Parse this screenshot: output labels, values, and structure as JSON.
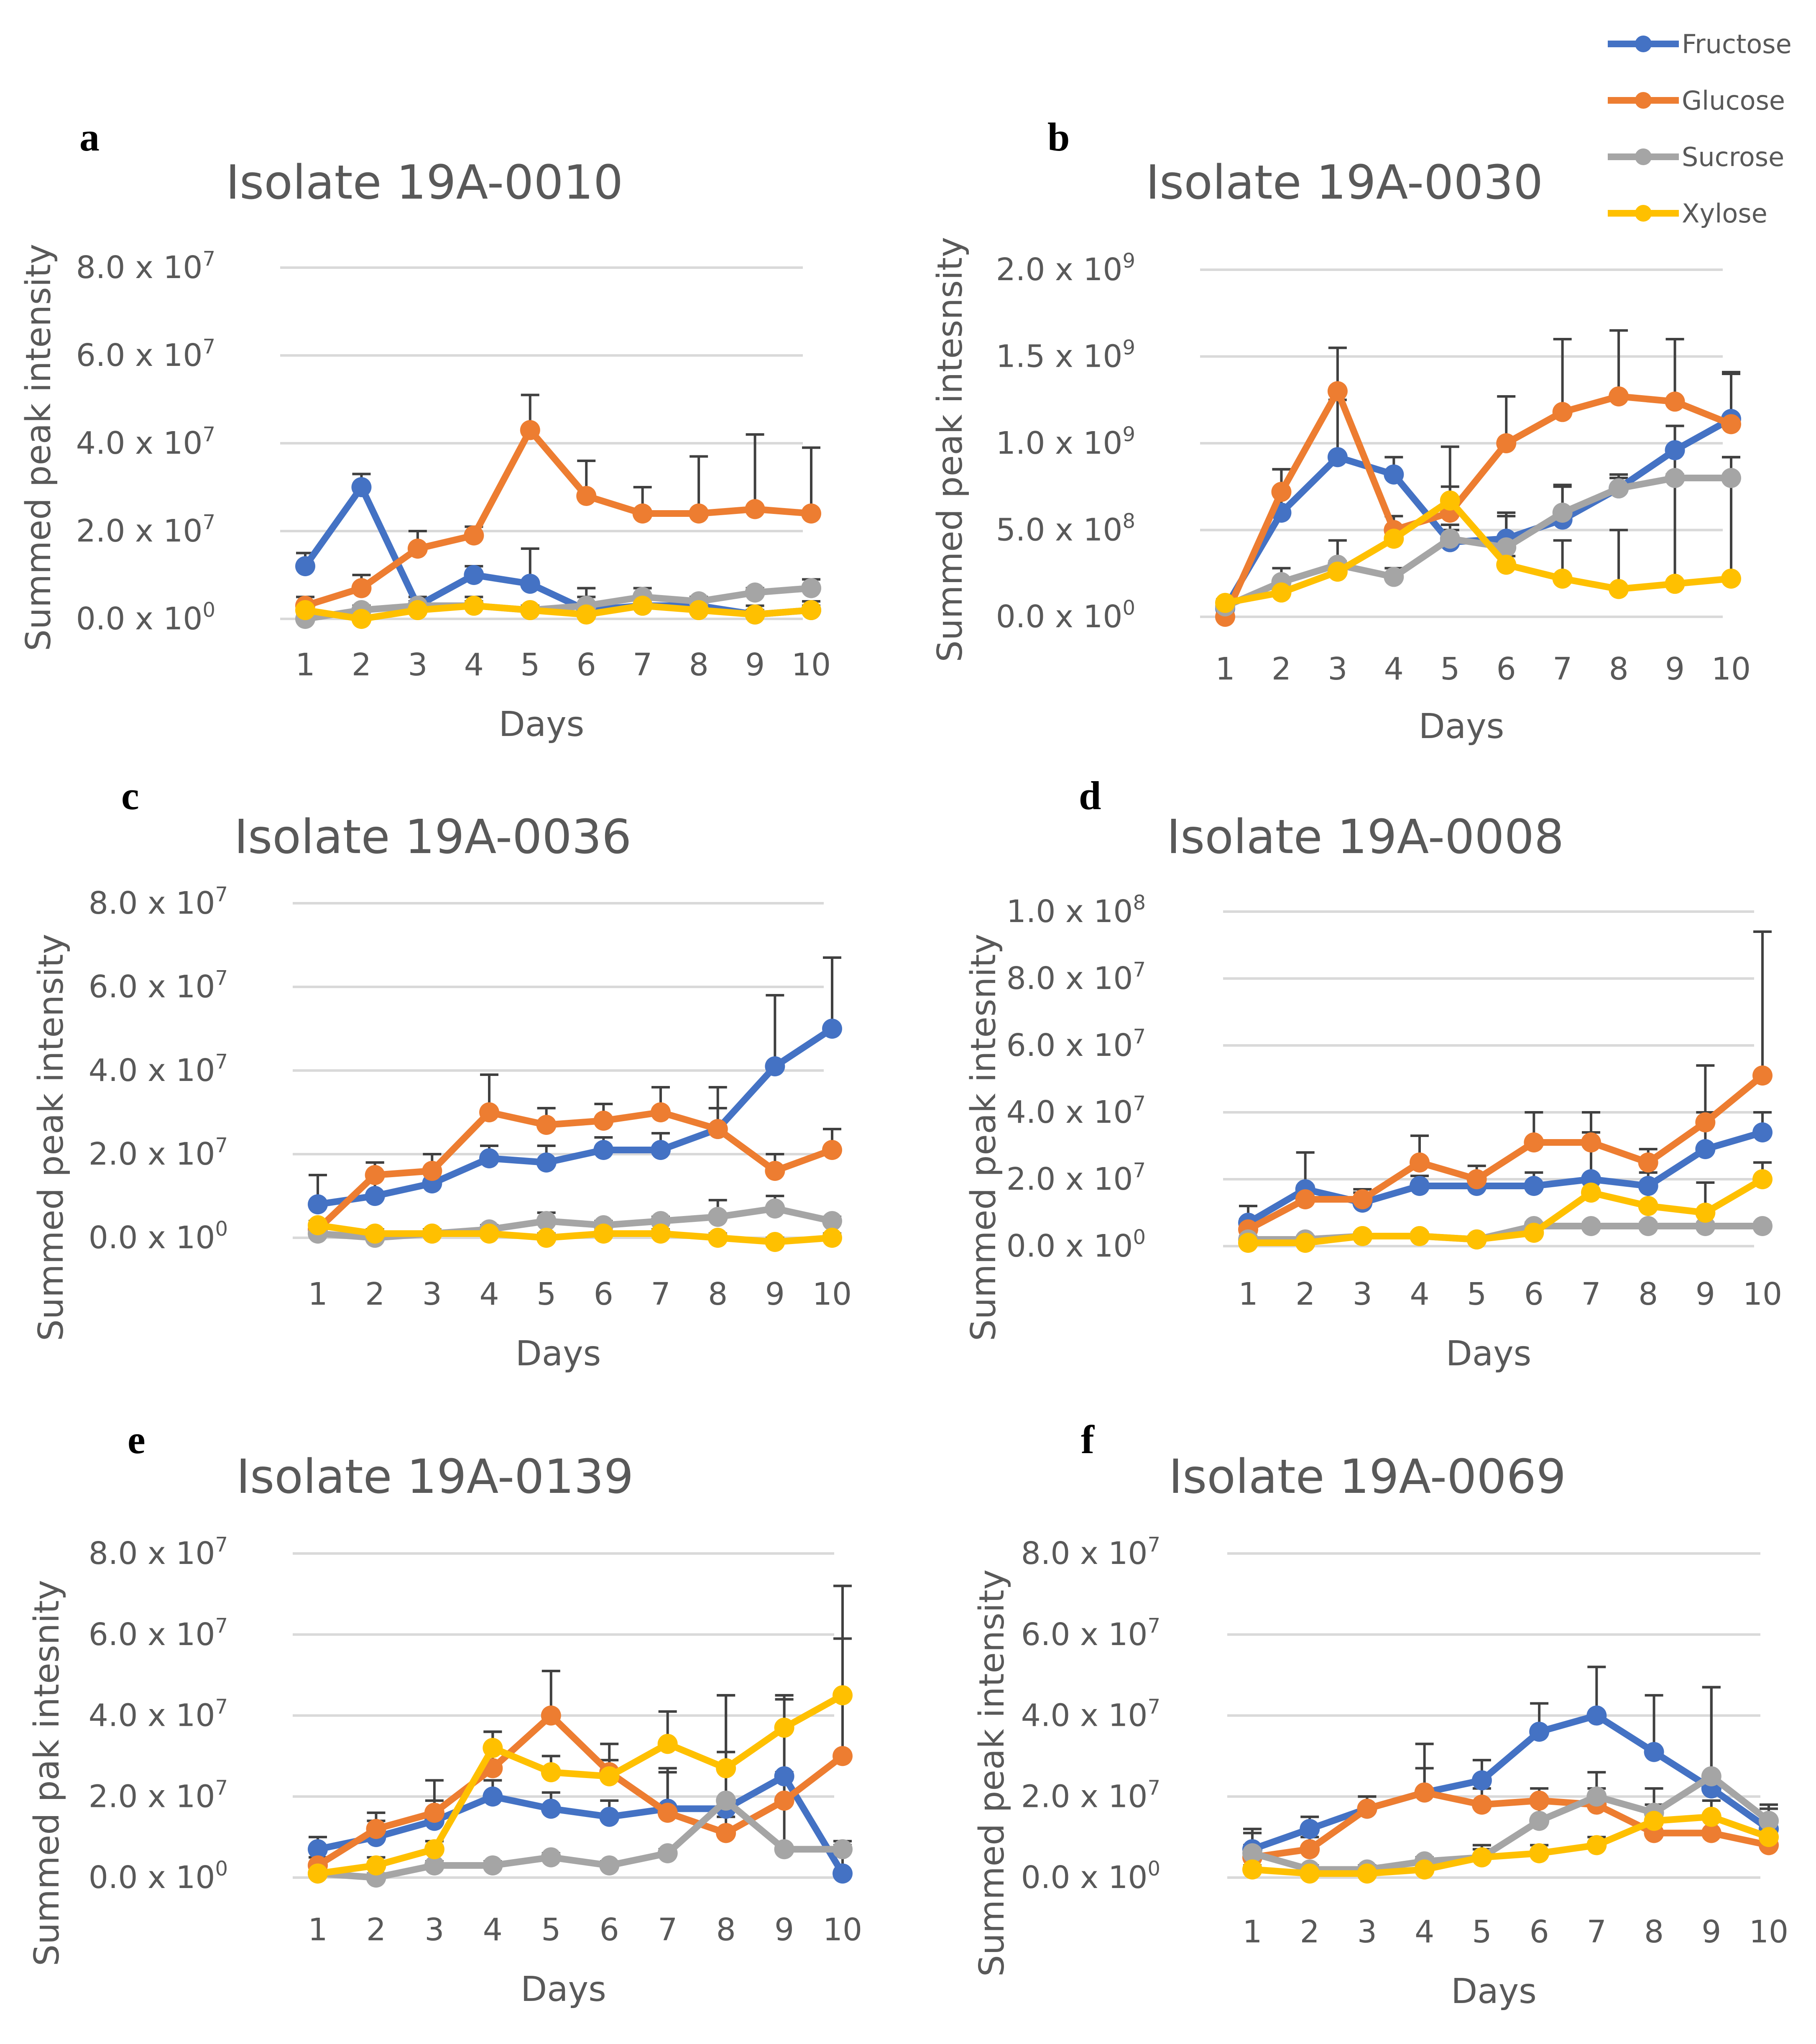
{
  "colors": {
    "Fructose": "#4472c4",
    "Glucose": "#ed7d31",
    "Sucrose": "#a5a5a5",
    "Xylose": "#ffc000"
  },
  "legend": {
    "entries": [
      "Fructose",
      "Glucose",
      "Sucrose",
      "Xylose"
    ]
  },
  "chart_data": [
    {
      "type": "line",
      "panel": "a",
      "title": "Isolate 19A-0010",
      "xlabel": "Days",
      "ylabel": "Summed peak intensity",
      "categories": [
        "1",
        "2",
        "3",
        "4",
        "5",
        "6",
        "7",
        "8",
        "9",
        "10"
      ],
      "ylim": [
        0,
        80000000.0
      ],
      "yticks": [
        {
          "value": 0,
          "mant": "0.0",
          "exp": "0"
        },
        {
          "value": 20000000.0,
          "mant": "2.0",
          "exp": "7"
        },
        {
          "value": 40000000.0,
          "mant": "4.0",
          "exp": "7"
        },
        {
          "value": 60000000.0,
          "mant": "6.0",
          "exp": "7"
        },
        {
          "value": 80000000.0,
          "mant": "8.0",
          "exp": "7"
        }
      ],
      "series": [
        {
          "name": "Fructose",
          "values": [
            12000000.0,
            30000000.0,
            3000000.0,
            10000000.0,
            8000000.0,
            2000000.0,
            3000000.0,
            3000000.0,
            1000000.0,
            2000000.0
          ],
          "errors": [
            3000000.0,
            3000000.0,
            2000000.0,
            2000000.0,
            8000000.0,
            3000000.0,
            2000000.0,
            2000000.0,
            2000000.0,
            2000000.0
          ]
        },
        {
          "name": "Glucose",
          "values": [
            3000000.0,
            7000000.0,
            16000000.0,
            19000000.0,
            43000000.0,
            28000000.0,
            24000000.0,
            24000000.0,
            25000000.0,
            24000000.0
          ],
          "errors": [
            2000000.0,
            3000000.0,
            4000000.0,
            2000000.0,
            8000000.0,
            8000000.0,
            6000000.0,
            13000000.0,
            17000000.0,
            15000000.0
          ]
        },
        {
          "name": "Sucrose",
          "values": [
            0.0,
            2000000.0,
            3000000.0,
            3000000.0,
            2000000.0,
            3000000.0,
            5000000.0,
            4000000.0,
            6000000.0,
            7000000.0
          ],
          "errors": [
            1000000.0,
            1000000.0,
            1000000.0,
            1000000.0,
            1000000.0,
            4000000.0,
            2000000.0,
            1000000.0,
            1000000.0,
            2000000.0
          ]
        },
        {
          "name": "Xylose",
          "values": [
            2000000.0,
            0.0,
            2000000.0,
            3000000.0,
            2000000.0,
            1000000.0,
            3000000.0,
            2000000.0,
            1000000.0,
            2000000.0
          ],
          "errors": [
            1000000.0,
            1000000.0,
            1000000.0,
            2000000.0,
            1000000.0,
            1000000.0,
            1000000.0,
            1000000.0,
            1000000.0,
            1000000.0
          ]
        }
      ]
    },
    {
      "type": "line",
      "panel": "b",
      "title": "Isolate 19A-0030",
      "xlabel": "Days",
      "ylabel": "Summed peak intesnsity",
      "categories": [
        "1",
        "2",
        "3",
        "4",
        "5",
        "6",
        "7",
        "8",
        "9",
        "10"
      ],
      "ylim": [
        0,
        2000000000.0
      ],
      "yticks": [
        {
          "value": 0,
          "mant": "0.0",
          "exp": "0"
        },
        {
          "value": 500000000.0,
          "mant": "5.0",
          "exp": "8"
        },
        {
          "value": 1000000000.0,
          "mant": "1.0",
          "exp": "9"
        },
        {
          "value": 1500000000.0,
          "mant": "1.5",
          "exp": "9"
        },
        {
          "value": 2000000000.0,
          "mant": "2.0",
          "exp": "9"
        }
      ],
      "series": [
        {
          "name": "Fructose",
          "values": [
            50000000.0,
            600000000.0,
            920000000.0,
            820000000.0,
            430000000.0,
            450000000.0,
            560000000.0,
            740000000.0,
            960000000.0,
            1140000000.0
          ],
          "errors": [
            20000000.0,
            250000000.0,
            330000000.0,
            100000000.0,
            100000000.0,
            130000000.0,
            200000000.0,
            80000000.0,
            140000000.0,
            260000000.0
          ]
        },
        {
          "name": "Glucose",
          "values": [
            0.0,
            720000000.0,
            1300000000.0,
            500000000.0,
            600000000.0,
            1000000000.0,
            1180000000.0,
            1270000000.0,
            1240000000.0,
            1110000000.0
          ],
          "errors": [
            20000000.0,
            130000000.0,
            250000000.0,
            80000000.0,
            380000000.0,
            270000000.0,
            420000000.0,
            380000000.0,
            360000000.0,
            300000000.0
          ]
        },
        {
          "name": "Sucrose",
          "values": [
            60000000.0,
            200000000.0,
            300000000.0,
            230000000.0,
            450000000.0,
            400000000.0,
            600000000.0,
            740000000.0,
            800000000.0,
            800000000.0
          ],
          "errors": [
            20000000.0,
            80000000.0,
            140000000.0,
            50000000.0,
            50000000.0,
            200000000.0,
            150000000.0,
            60000000.0,
            300000000.0,
            120000000.0
          ]
        },
        {
          "name": "Xylose",
          "values": [
            80000000.0,
            140000000.0,
            260000000.0,
            450000000.0,
            670000000.0,
            300000000.0,
            220000000.0,
            160000000.0,
            190000000.0,
            220000000.0
          ],
          "errors": [
            20000000.0,
            50000000.0,
            60000000.0,
            60000000.0,
            80000000.0,
            50000000.0,
            220000000.0,
            340000000.0,
            630000000.0,
            700000000.0
          ]
        }
      ]
    },
    {
      "type": "line",
      "panel": "c",
      "title": "Isolate 19A-0036",
      "xlabel": "Days",
      "ylabel": "Summed peak intensity",
      "categories": [
        "1",
        "2",
        "3",
        "4",
        "5",
        "6",
        "7",
        "8",
        "9",
        "10"
      ],
      "ylim": [
        0,
        80000000.0
      ],
      "yticks": [
        {
          "value": 0,
          "mant": "0.0",
          "exp": "0"
        },
        {
          "value": 20000000.0,
          "mant": "2.0",
          "exp": "7"
        },
        {
          "value": 40000000.0,
          "mant": "4.0",
          "exp": "7"
        },
        {
          "value": 60000000.0,
          "mant": "6.0",
          "exp": "7"
        },
        {
          "value": 80000000.0,
          "mant": "8.0",
          "exp": "7"
        }
      ],
      "series": [
        {
          "name": "Fructose",
          "values": [
            8000000.0,
            10000000.0,
            13000000.0,
            19000000.0,
            18000000.0,
            21000000.0,
            21000000.0,
            26000000.0,
            41000000.0,
            50000000.0
          ],
          "errors": [
            7000000.0,
            8000000.0,
            3000000.0,
            3000000.0,
            4000000.0,
            3000000.0,
            4000000.0,
            5000000.0,
            17000000.0,
            17000000.0
          ]
        },
        {
          "name": "Glucose",
          "values": [
            2000000.0,
            15000000.0,
            16000000.0,
            30000000.0,
            27000000.0,
            28000000.0,
            30000000.0,
            26000000.0,
            16000000.0,
            21000000.0
          ],
          "errors": [
            2000000.0,
            3000000.0,
            4000000.0,
            9000000.0,
            4000000.0,
            4000000.0,
            6000000.0,
            10000000.0,
            4000000.0,
            5000000.0
          ]
        },
        {
          "name": "Sucrose",
          "values": [
            1000000.0,
            0.0,
            1000000.0,
            2000000.0,
            4000000.0,
            3000000.0,
            4000000.0,
            5000000.0,
            7000000.0,
            4000000.0
          ],
          "errors": [
            1000000.0,
            1000000.0,
            1000000.0,
            1000000.0,
            2000000.0,
            1000000.0,
            1000000.0,
            4000000.0,
            3000000.0,
            1000000.0
          ]
        },
        {
          "name": "Xylose",
          "values": [
            3000000.0,
            1000000.0,
            1000000.0,
            1000000.0,
            0.0,
            1000000.0,
            1000000.0,
            0.0,
            -1000000.0,
            0.0
          ],
          "errors": [
            1000000.0,
            1000000.0,
            1000000.0,
            1000000.0,
            1000000.0,
            1000000.0,
            1000000.0,
            1000000.0,
            1000000.0,
            1000000.0
          ]
        }
      ]
    },
    {
      "type": "line",
      "panel": "d",
      "title": "Isolate 19A-0008",
      "xlabel": "Days",
      "ylabel": "Summed peak intesnity",
      "categories": [
        "1",
        "2",
        "3",
        "4",
        "5",
        "6",
        "7",
        "8",
        "9",
        "10"
      ],
      "ylim": [
        0,
        100000000.0
      ],
      "yticks": [
        {
          "value": 0,
          "mant": "0.0",
          "exp": "0"
        },
        {
          "value": 20000000.0,
          "mant": "2.0",
          "exp": "7"
        },
        {
          "value": 40000000.0,
          "mant": "4.0",
          "exp": "7"
        },
        {
          "value": 60000000.0,
          "mant": "6.0",
          "exp": "7"
        },
        {
          "value": 80000000.0,
          "mant": "8.0",
          "exp": "7"
        },
        {
          "value": 100000000.0,
          "mant": "1.0",
          "exp": "8"
        }
      ],
      "series": [
        {
          "name": "Fructose",
          "values": [
            7000000.0,
            17000000.0,
            13000000.0,
            18000000.0,
            18000000.0,
            18000000.0,
            20000000.0,
            18000000.0,
            29000000.0,
            34000000.0
          ],
          "errors": [
            5000000.0,
            11000000.0,
            3000000.0,
            3000000.0,
            3000000.0,
            4000000.0,
            20000000.0,
            4000000.0,
            11000000.0,
            6000000.0
          ]
        },
        {
          "name": "Glucose",
          "values": [
            5000000.0,
            14000000.0,
            14000000.0,
            25000000.0,
            20000000.0,
            31000000.0,
            31000000.0,
            25000000.0,
            37000000.0,
            51000000.0
          ],
          "errors": [
            3000000.0,
            4000000.0,
            3000000.0,
            8000000.0,
            4000000.0,
            9000000.0,
            9000000.0,
            4000000.0,
            17000000.0,
            43000000.0
          ]
        },
        {
          "name": "Sucrose",
          "values": [
            2000000.0,
            2000000.0,
            3000000.0,
            3000000.0,
            2000000.0,
            6000000.0,
            6000000.0,
            6000000.0,
            6000000.0,
            6000000.0
          ],
          "errors": [
            1000000.0,
            1000000.0,
            1000000.0,
            1000000.0,
            1000000.0,
            1000000.0,
            1000000.0,
            1000000.0,
            1000000.0,
            1000000.0
          ]
        },
        {
          "name": "Xylose",
          "values": [
            1000000.0,
            1000000.0,
            3000000.0,
            3000000.0,
            2000000.0,
            4000000.0,
            16000000.0,
            12000000.0,
            10000000.0,
            20000000.0
          ],
          "errors": [
            1000000.0,
            1000000.0,
            1000000.0,
            1000000.0,
            1000000.0,
            2000000.0,
            18000000.0,
            6000000.0,
            9000000.0,
            5000000.0
          ]
        }
      ]
    },
    {
      "type": "line",
      "panel": "e",
      "title": "Isolate 19A-0139",
      "xlabel": "Days",
      "ylabel": "Summed pak intesnity",
      "categories": [
        "1",
        "2",
        "3",
        "4",
        "5",
        "6",
        "7",
        "8",
        "9",
        "10"
      ],
      "ylim": [
        0,
        80000000.0
      ],
      "yticks": [
        {
          "value": 0,
          "mant": "0.0",
          "exp": "0"
        },
        {
          "value": 20000000.0,
          "mant": "2.0",
          "exp": "7"
        },
        {
          "value": 40000000.0,
          "mant": "4.0",
          "exp": "7"
        },
        {
          "value": 60000000.0,
          "mant": "6.0",
          "exp": "7"
        },
        {
          "value": 80000000.0,
          "mant": "8.0",
          "exp": "7"
        }
      ],
      "series": [
        {
          "name": "Fructose",
          "values": [
            7000000.0,
            10000000.0,
            14000000.0,
            20000000.0,
            17000000.0,
            15000000.0,
            17000000.0,
            17000000.0,
            25000000.0,
            1000000.0
          ],
          "errors": [
            3000000.0,
            4000000.0,
            5000000.0,
            4000000.0,
            4000000.0,
            4000000.0,
            9000000.0,
            14000000.0,
            19000000.0,
            8000000.0
          ]
        },
        {
          "name": "Glucose",
          "values": [
            3000000.0,
            12000000.0,
            16000000.0,
            27000000.0,
            40000000.0,
            26000000.0,
            16000000.0,
            11000000.0,
            19000000.0,
            30000000.0
          ],
          "errors": [
            2000000.0,
            4000000.0,
            8000000.0,
            9000000.0,
            11000000.0,
            7000000.0,
            11000000.0,
            4000000.0,
            7000000.0,
            29000000.0
          ]
        },
        {
          "name": "Sucrose",
          "values": [
            1000000.0,
            0.0,
            3000000.0,
            3000000.0,
            5000000.0,
            3000000.0,
            6000000.0,
            19000000.0,
            7000000.0,
            7000000.0
          ],
          "errors": [
            1000000.0,
            1000000.0,
            1000000.0,
            1000000.0,
            1000000.0,
            1000000.0,
            1000000.0,
            26000000.0,
            38000000.0,
            1000000.0
          ]
        },
        {
          "name": "Xylose",
          "values": [
            1000000.0,
            3000000.0,
            7000000.0,
            32000000.0,
            26000000.0,
            25000000.0,
            33000000.0,
            27000000.0,
            37000000.0,
            45000000.0
          ],
          "errors": [
            1000000.0,
            2000000.0,
            2000000.0,
            4000000.0,
            4000000.0,
            4000000.0,
            8000000.0,
            18000000.0,
            8000000.0,
            27000000.0
          ]
        }
      ]
    },
    {
      "type": "line",
      "panel": "f",
      "title": "Isolate 19A-0069",
      "xlabel": "Days",
      "ylabel": "Summed peak intensity",
      "categories": [
        "1",
        "2",
        "3",
        "4",
        "5",
        "6",
        "7",
        "8",
        "9",
        "10"
      ],
      "ylim": [
        0,
        80000000.0
      ],
      "yticks": [
        {
          "value": 0,
          "mant": "0.0",
          "exp": "0"
        },
        {
          "value": 20000000.0,
          "mant": "2.0",
          "exp": "7"
        },
        {
          "value": 40000000.0,
          "mant": "4.0",
          "exp": "7"
        },
        {
          "value": 60000000.0,
          "mant": "6.0",
          "exp": "7"
        },
        {
          "value": 80000000.0,
          "mant": "8.0",
          "exp": "7"
        }
      ],
      "series": [
        {
          "name": "Fructose",
          "values": [
            7000000.0,
            12000000.0,
            17000000.0,
            21000000.0,
            24000000.0,
            36000000.0,
            40000000.0,
            31000000.0,
            22000000.0,
            12000000.0
          ],
          "errors": [
            5000000.0,
            3000000.0,
            3000000.0,
            6000000.0,
            5000000.0,
            7000000.0,
            12000000.0,
            14000000.0,
            25000000.0,
            5000000.0
          ]
        },
        {
          "name": "Glucose",
          "values": [
            5000000.0,
            7000000.0,
            17000000.0,
            21000000.0,
            18000000.0,
            19000000.0,
            18000000.0,
            11000000.0,
            11000000.0,
            8000000.0
          ],
          "errors": [
            3000000.0,
            3000000.0,
            3000000.0,
            12000000.0,
            4000000.0,
            3000000.0,
            4000000.0,
            4000000.0,
            4000000.0,
            3000000.0
          ]
        },
        {
          "name": "Sucrose",
          "values": [
            6000000.0,
            2000000.0,
            2000000.0,
            4000000.0,
            5000000.0,
            14000000.0,
            20000000.0,
            16000000.0,
            25000000.0,
            14000000.0
          ],
          "errors": [
            5000000.0,
            1000000.0,
            1000000.0,
            1000000.0,
            3000000.0,
            5000000.0,
            6000000.0,
            6000000.0,
            22000000.0,
            4000000.0
          ]
        },
        {
          "name": "Xylose",
          "values": [
            2000000.0,
            1000000.0,
            1000000.0,
            2000000.0,
            5000000.0,
            6000000.0,
            8000000.0,
            14000000.0,
            15000000.0,
            10000000.0
          ],
          "errors": [
            1000000.0,
            1000000.0,
            1000000.0,
            1000000.0,
            2000000.0,
            2000000.0,
            2000000.0,
            4000000.0,
            4000000.0,
            4000000.0
          ]
        }
      ]
    }
  ]
}
